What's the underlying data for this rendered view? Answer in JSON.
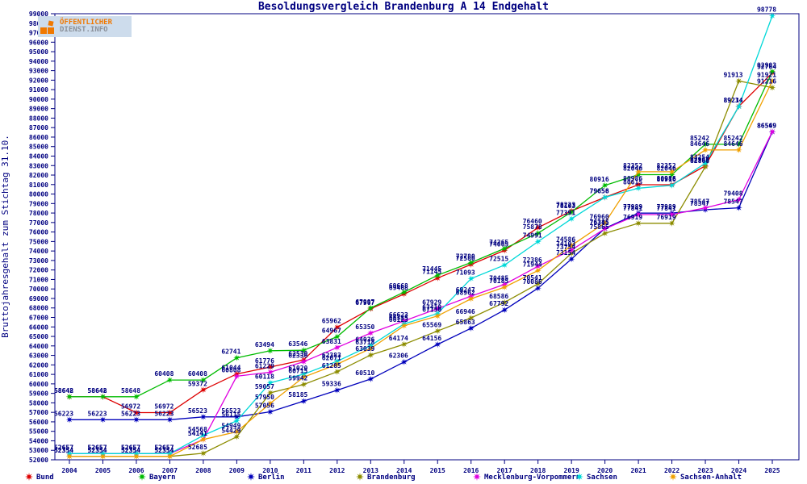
{
  "title": "Besoldungsvergleich Brandenburg A 14 Endgehalt",
  "ylabel": "Bruttojahresgehalt zum Stichtag 31.10.",
  "logo": {
    "line1": "ÖFFENTLICHER",
    "line2": "DIENST.INFO"
  },
  "colors": {
    "axis": "#000080",
    "label": "#000080",
    "background": "#ffffff"
  },
  "chart_data": {
    "type": "line",
    "x": [
      2004,
      2005,
      2006,
      2007,
      2008,
      2009,
      2010,
      2011,
      2012,
      2013,
      2014,
      2015,
      2016,
      2017,
      2018,
      2019,
      2020,
      2021,
      2022,
      2023,
      2024,
      2025
    ],
    "ylim": [
      52000,
      99000
    ],
    "ytick_step": 1000,
    "grid": false,
    "legend_position": "bottom",
    "marker": "star",
    "series": [
      {
        "name": "Bund",
        "color": "#dd0000",
        "values": [
          58642,
          58642,
          56972,
          56972,
          59372,
          61044,
          61776,
          62530,
          65962,
          67907,
          69468,
          71145,
          72580,
          74065,
          76460,
          78223,
          79656,
          80986,
          80986,
          82968,
          89234,
          92764
        ]
      },
      {
        "name": "Bayern",
        "color": "#00bb00",
        "values": [
          58648,
          58648,
          58648,
          60408,
          60408,
          62741,
          63494,
          63546,
          64967,
          67997,
          69668,
          71445,
          72780,
          74265,
          75878,
          78103,
          80916,
          82046,
          82046,
          85242,
          85242,
          92903
        ]
      },
      {
        "name": "Berlin",
        "color": "#0000bb",
        "values": [
          56223,
          56223,
          56223,
          56223,
          56523,
          56523,
          57056,
          58185,
          59336,
          60510,
          62306,
          64156,
          65863,
          67792,
          70086,
          73154,
          76385,
          77989,
          77989,
          78347,
          78547,
          86549
        ]
      },
      {
        "name": "Brandenburg",
        "color": "#8c8c00",
        "values": [
          52354,
          52354,
          52354,
          52354,
          52685,
          54429,
          59057,
          59942,
          61285,
          63039,
          64174,
          65569,
          66946,
          68586,
          70541,
          73754,
          75865,
          76919,
          76919,
          82868,
          91913,
          91216
        ]
      },
      {
        "name": "Mecklenburg-Vorpommern",
        "color": "#e000e0",
        "values": [
          52657,
          52657,
          52657,
          52657,
          54141,
          60808,
          61229,
          62336,
          63831,
          65350,
          66623,
          67929,
          69247,
          70485,
          72386,
          74103,
          76345,
          77841,
          77841,
          78547,
          79408,
          86569
        ]
      },
      {
        "name": "Sachsen",
        "color": "#00d8d8",
        "values": [
          52657,
          52657,
          52657,
          52657,
          54568,
          56115,
          60118,
          61020,
          62383,
          64036,
          66325,
          67410,
          71093,
          72515,
          74991,
          77391,
          79658,
          80615,
          80916,
          83254,
          89214,
          98778
        ]
      },
      {
        "name": "Sachsen-Anhalt",
        "color": "#f0a000",
        "values": [
          52354,
          52354,
          52354,
          52354,
          54141,
          54949,
          57950,
          60715,
          62071,
          63718,
          66123,
          67150,
          68962,
          70185,
          71944,
          74586,
          76960,
          82352,
          82352,
          84646,
          84646,
          91921
        ]
      }
    ]
  }
}
